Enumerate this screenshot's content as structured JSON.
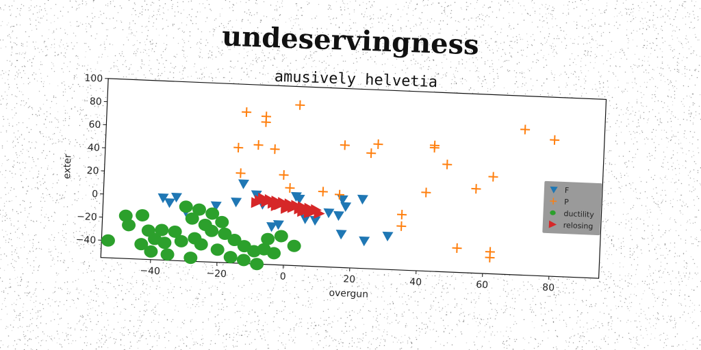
{
  "chart_data": {
    "type": "scatter",
    "title": "undeservingness",
    "subtitle": "amusively helvetia",
    "xlabel": "overgun",
    "ylabel": "exter",
    "xlim": [
      -55,
      95
    ],
    "ylim": [
      -55,
      100
    ],
    "xticks": [
      -40,
      -20,
      0,
      20,
      40,
      60,
      80
    ],
    "yticks": [
      -40,
      -20,
      0,
      20,
      40,
      60,
      80,
      100
    ],
    "legend_position": "right",
    "series": [
      {
        "name": "F",
        "marker": "triangle-down",
        "color": "#1f77b4",
        "points": [
          [
            -37,
            -1
          ],
          [
            -33,
            0
          ],
          [
            -35,
            -5
          ],
          [
            -30,
            -12
          ],
          [
            -21,
            -6
          ],
          [
            -15,
            -2
          ],
          [
            -13,
            14
          ],
          [
            -9,
            5
          ],
          [
            -7,
            -3
          ],
          [
            -4,
            -22
          ],
          [
            -5,
            -35
          ],
          [
            -2,
            -20
          ],
          [
            3,
            5
          ],
          [
            4,
            3
          ],
          [
            6,
            -14
          ],
          [
            9,
            -15
          ],
          [
            13,
            -8
          ],
          [
            16,
            -10
          ],
          [
            17,
            4
          ],
          [
            18,
            -2
          ],
          [
            17,
            -26
          ],
          [
            23,
            5
          ],
          [
            24,
            -31
          ],
          [
            31,
            -26
          ]
        ]
      },
      {
        "name": "P",
        "marker": "plus",
        "color": "#ff7f0e",
        "points": [
          [
            -13,
            76
          ],
          [
            -7,
            73
          ],
          [
            -7,
            68
          ],
          [
            3,
            84
          ],
          [
            -15,
            45
          ],
          [
            -9,
            48
          ],
          [
            -4,
            45
          ],
          [
            -14,
            23
          ],
          [
            -1,
            23
          ],
          [
            1,
            12
          ],
          [
            11,
            10
          ],
          [
            16,
            8
          ],
          [
            17,
            51
          ],
          [
            25,
            45
          ],
          [
            27,
            53
          ],
          [
            35,
            -7
          ],
          [
            35,
            -17
          ],
          [
            42,
            13
          ],
          [
            44,
            52
          ],
          [
            44,
            54
          ],
          [
            48,
            38
          ],
          [
            52,
            -34
          ],
          [
            57,
            18
          ],
          [
            62,
            29
          ],
          [
            62,
            -36
          ],
          [
            62,
            -41
          ],
          [
            71,
            71
          ],
          [
            80,
            63
          ]
        ]
      },
      {
        "name": "ductility",
        "marker": "circle",
        "color": "#2ca02c",
        "points": [
          [
            -48,
            -18
          ],
          [
            -43,
            -17
          ],
          [
            -47,
            -26
          ],
          [
            -41,
            -30
          ],
          [
            -37,
            -29
          ],
          [
            -33,
            -30
          ],
          [
            -39,
            -37
          ],
          [
            -36,
            -40
          ],
          [
            -31,
            -38
          ],
          [
            -27,
            -35
          ],
          [
            -25,
            -40
          ],
          [
            -40,
            -48
          ],
          [
            -35,
            -50
          ],
          [
            -28,
            -52
          ],
          [
            -43,
            -42
          ],
          [
            -22,
            -28
          ],
          [
            -18,
            -30
          ],
          [
            -15,
            -35
          ],
          [
            -12,
            -40
          ],
          [
            -9,
            -44
          ],
          [
            -6,
            -42
          ],
          [
            -20,
            -44
          ],
          [
            -16,
            -50
          ],
          [
            -12,
            -52
          ],
          [
            -8,
            -55
          ],
          [
            -3,
            -45
          ],
          [
            -5,
            -33
          ],
          [
            -1,
            -30
          ],
          [
            3,
            -38
          ],
          [
            -26,
            -10
          ],
          [
            -22,
            -13
          ],
          [
            -19,
            -20
          ],
          [
            -24,
            -23
          ],
          [
            -28,
            -18
          ],
          [
            -53,
            -40
          ],
          [
            -30,
            -8
          ]
        ]
      },
      {
        "name": "relosing",
        "marker": "triangle-right",
        "color": "#d62728",
        "points": [
          [
            -8,
            0
          ],
          [
            -6,
            -1
          ],
          [
            -4,
            -2
          ],
          [
            -2,
            -3
          ],
          [
            0,
            -4
          ],
          [
            2,
            -5
          ],
          [
            4,
            -6
          ],
          [
            6,
            -7
          ],
          [
            8,
            -8
          ],
          [
            -7,
            2
          ],
          [
            -5,
            1
          ],
          [
            -3,
            0
          ],
          [
            -1,
            -1
          ],
          [
            1,
            -2
          ],
          [
            3,
            -3
          ],
          [
            5,
            -4
          ],
          [
            7,
            -5
          ],
          [
            9,
            -6
          ],
          [
            10,
            -9
          ],
          [
            -9,
            -2
          ],
          [
            -3,
            -4
          ],
          [
            0,
            -6
          ],
          [
            5,
            -8
          ],
          [
            7,
            -9
          ]
        ]
      }
    ]
  },
  "colors": {
    "axes_frame": "#111111",
    "legend_bg": "#9a9a9a"
  }
}
